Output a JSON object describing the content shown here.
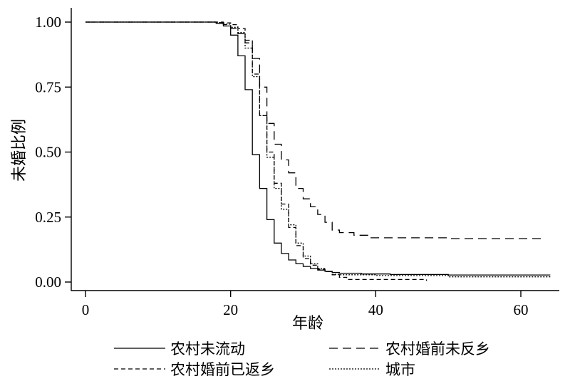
{
  "chart_data": {
    "type": "line",
    "title": "",
    "xlabel": "年龄",
    "ylabel": "未婚比例",
    "xlim": [
      0,
      64
    ],
    "ylim": [
      0,
      1
    ],
    "x_ticks": [
      0,
      20,
      40,
      60
    ],
    "x_tick_labels": [
      "0",
      "20",
      "40",
      "60"
    ],
    "y_ticks": [
      0,
      0.25,
      0.5,
      0.75,
      1
    ],
    "y_tick_labels": [
      "0.00",
      "0.25",
      "0.50",
      "0.75",
      "1.00"
    ],
    "legend_position": "bottom",
    "series": [
      {
        "name": "农村未流动",
        "dash": "solid",
        "points": [
          [
            0,
            1.0
          ],
          [
            17,
            1.0
          ],
          [
            18,
            0.995
          ],
          [
            19,
            0.985
          ],
          [
            20,
            0.95
          ],
          [
            21,
            0.87
          ],
          [
            22,
            0.74
          ],
          [
            23,
            0.49
          ],
          [
            24,
            0.36
          ],
          [
            25,
            0.24
          ],
          [
            26,
            0.15
          ],
          [
            27,
            0.11
          ],
          [
            28,
            0.085
          ],
          [
            29,
            0.07
          ],
          [
            30,
            0.06
          ],
          [
            31,
            0.052
          ],
          [
            32,
            0.046
          ],
          [
            33,
            0.041
          ],
          [
            34,
            0.037
          ],
          [
            35,
            0.034
          ],
          [
            38,
            0.031
          ],
          [
            42,
            0.029
          ],
          [
            50,
            0.027
          ],
          [
            64,
            0.026
          ]
        ]
      },
      {
        "name": "农村婚前未反乡",
        "dash": "longdash",
        "points": [
          [
            0,
            1.0
          ],
          [
            17,
            1.0
          ],
          [
            18,
            0.998
          ],
          [
            19,
            0.99
          ],
          [
            20,
            0.975
          ],
          [
            21,
            0.955
          ],
          [
            22,
            0.92
          ],
          [
            23,
            0.86
          ],
          [
            24,
            0.75
          ],
          [
            25,
            0.61
          ],
          [
            26,
            0.53
          ],
          [
            27,
            0.47
          ],
          [
            28,
            0.42
          ],
          [
            29,
            0.36
          ],
          [
            30,
            0.32
          ],
          [
            31,
            0.29
          ],
          [
            32,
            0.26
          ],
          [
            33,
            0.23
          ],
          [
            34,
            0.2
          ],
          [
            35,
            0.19
          ],
          [
            37,
            0.18
          ],
          [
            39,
            0.17
          ],
          [
            50,
            0.167
          ],
          [
            63,
            0.165
          ]
        ]
      },
      {
        "name": "农村婚前已返乡",
        "dash": "dash",
        "points": [
          [
            0,
            1.0
          ],
          [
            18,
            1.0
          ],
          [
            19,
            0.997
          ],
          [
            20,
            0.99
          ],
          [
            21,
            0.975
          ],
          [
            22,
            0.93
          ],
          [
            23,
            0.8
          ],
          [
            24,
            0.64
          ],
          [
            25,
            0.5
          ],
          [
            26,
            0.38
          ],
          [
            27,
            0.3
          ],
          [
            28,
            0.21
          ],
          [
            29,
            0.14
          ],
          [
            30,
            0.09
          ],
          [
            31,
            0.065
          ],
          [
            32,
            0.05
          ],
          [
            33,
            0.04
          ],
          [
            34,
            0.028
          ],
          [
            35,
            0.018
          ],
          [
            36,
            0.01
          ],
          [
            47,
            0.005
          ]
        ]
      },
      {
        "name": "城市",
        "dash": "dot",
        "points": [
          [
            0,
            1.0
          ],
          [
            17,
            1.0
          ],
          [
            18,
            0.998
          ],
          [
            19,
            0.992
          ],
          [
            20,
            0.98
          ],
          [
            21,
            0.96
          ],
          [
            22,
            0.9
          ],
          [
            23,
            0.79
          ],
          [
            24,
            0.64
          ],
          [
            25,
            0.48
          ],
          [
            26,
            0.36
          ],
          [
            27,
            0.28
          ],
          [
            28,
            0.22
          ],
          [
            29,
            0.15
          ],
          [
            30,
            0.1
          ],
          [
            31,
            0.07
          ],
          [
            32,
            0.052
          ],
          [
            33,
            0.04
          ],
          [
            34,
            0.03
          ],
          [
            35,
            0.028
          ],
          [
            40,
            0.025
          ],
          [
            50,
            0.02
          ],
          [
            64,
            0.018
          ]
        ]
      }
    ]
  }
}
